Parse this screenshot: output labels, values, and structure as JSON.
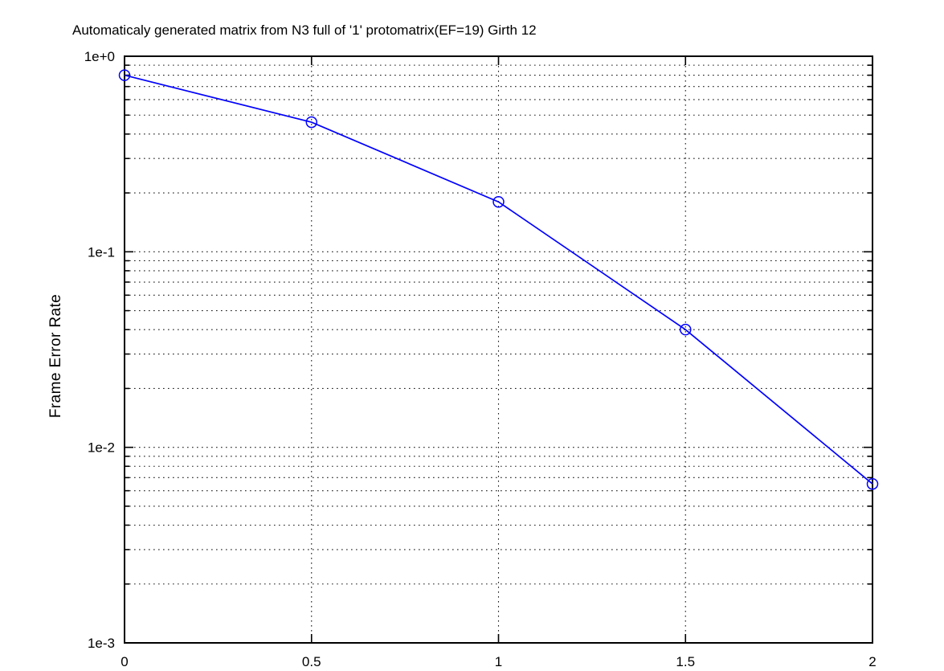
{
  "chart_data": {
    "type": "line",
    "title": "Automaticaly generated matrix from N3 full of '1' protomatrix(EF=19) Girth 12",
    "xlabel": "",
    "ylabel": "Frame Error Rate",
    "x": [
      0,
      0.5,
      1,
      1.5,
      2
    ],
    "series": [
      {
        "name": "Frame Error Rate",
        "values": [
          0.8,
          0.46,
          0.18,
          0.04,
          0.0065
        ],
        "color": "#0000ff",
        "marker": "circle",
        "line_style": "solid"
      }
    ],
    "xlim": [
      0,
      2
    ],
    "ylim": [
      0.001,
      1
    ],
    "xscale": "linear",
    "yscale": "log",
    "xticks": [
      0,
      0.5,
      1,
      1.5,
      2
    ],
    "xtick_labels": [
      "0",
      "0.5",
      "1",
      "1.5",
      "2"
    ],
    "ytick_values": [
      1,
      0.1,
      0.01,
      0.001
    ],
    "ytick_labels": [
      "1e+0",
      "1e-1",
      "1e-2",
      "1e-3"
    ],
    "grid": true,
    "minor_grid": true,
    "legend": "none"
  },
  "colors": {
    "series": "#0000ff",
    "grid": "#1a1a1a",
    "axis": "#000000",
    "background": "#ffffff",
    "text": "#000000"
  }
}
